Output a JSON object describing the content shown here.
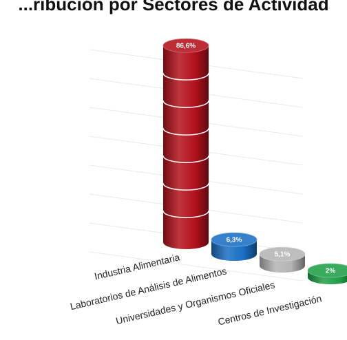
{
  "chart_data": {
    "type": "bar",
    "style": "3d-cylinder",
    "title": "...ribución por Sectores de Actividad",
    "categories": [
      "Industria Alimentaria",
      "Laboratorios de Análisis de Alimentos",
      "Universidades y Organismos Oficiales",
      "Centros de Investigación"
    ],
    "values": [
      86.6,
      6.3,
      5.1,
      2
    ],
    "value_labels": [
      "86,6%",
      "6,3%",
      "5,1%",
      "2%"
    ],
    "colors": [
      "#b3111c",
      "#1a6fc4",
      "#b4b4b4",
      "#1f9e47"
    ],
    "ylim": [
      0,
      100
    ],
    "grid": true
  }
}
